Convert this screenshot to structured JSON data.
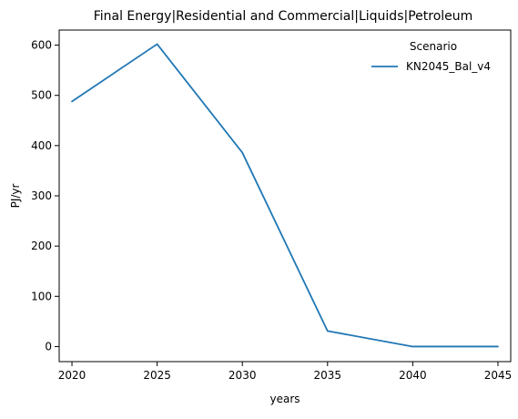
{
  "chart_data": {
    "type": "line",
    "title": "Final Energy|Residential and Commercial|Liquids|Petroleum",
    "xlabel": "years",
    "ylabel": "PJ/yr",
    "x": [
      2020,
      2025,
      2030,
      2035,
      2040,
      2045
    ],
    "x_ticks": [
      "2020",
      "2025",
      "2030",
      "2035",
      "2040",
      "2045"
    ],
    "y_ticks": [
      "0",
      "100",
      "200",
      "300",
      "400",
      "500",
      "600"
    ],
    "xlim": [
      2019.25,
      2045.75
    ],
    "ylim": [
      -30,
      630
    ],
    "grid": false,
    "legend_position": "top-right",
    "legend_title": "Scenario",
    "series": [
      {
        "name": "KN2045_Bal_v4",
        "color": "#1f77b4",
        "values": [
          488,
          602,
          386,
          31,
          0,
          0
        ]
      }
    ]
  }
}
